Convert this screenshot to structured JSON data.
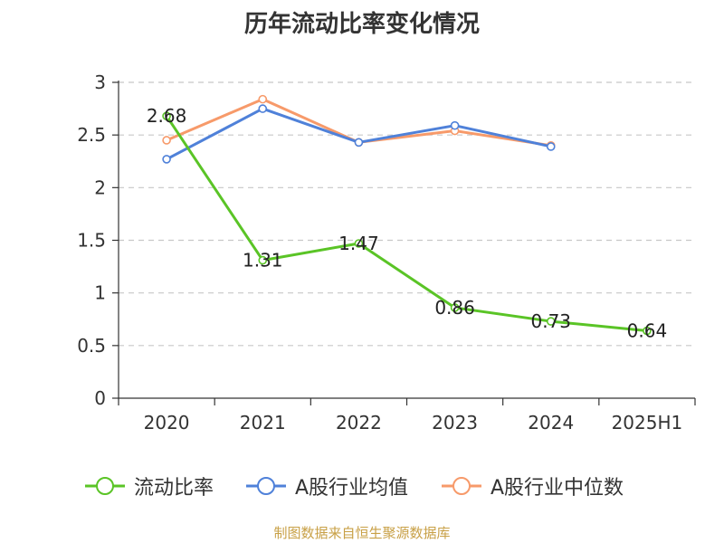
{
  "chart_data": {
    "type": "line",
    "title": "历年流动比率变化情况",
    "categories": [
      "2020",
      "2021",
      "2022",
      "2023",
      "2024",
      "2025H1"
    ],
    "ylim": [
      0,
      3
    ],
    "yticks": [
      "0",
      "0.5",
      "1",
      "1.5",
      "2",
      "2.5",
      "3"
    ],
    "grid": true,
    "legend_position": "bottom",
    "series": [
      {
        "name": "流动比率",
        "color": "#5ac426",
        "values": [
          2.68,
          1.31,
          1.47,
          0.86,
          0.73,
          0.64
        ],
        "labels": [
          "2.68",
          "1.31",
          "1.47",
          "0.86",
          "0.73",
          "0.64"
        ]
      },
      {
        "name": "A股行业均值",
        "color": "#4f81d9",
        "values": [
          2.27,
          2.75,
          2.43,
          2.59,
          2.39,
          null
        ]
      },
      {
        "name": "A股行业中位数",
        "color": "#f79a6a",
        "values": [
          2.45,
          2.84,
          2.43,
          2.54,
          2.4,
          null
        ]
      }
    ]
  },
  "source": "制图数据来自恒生聚源数据库"
}
